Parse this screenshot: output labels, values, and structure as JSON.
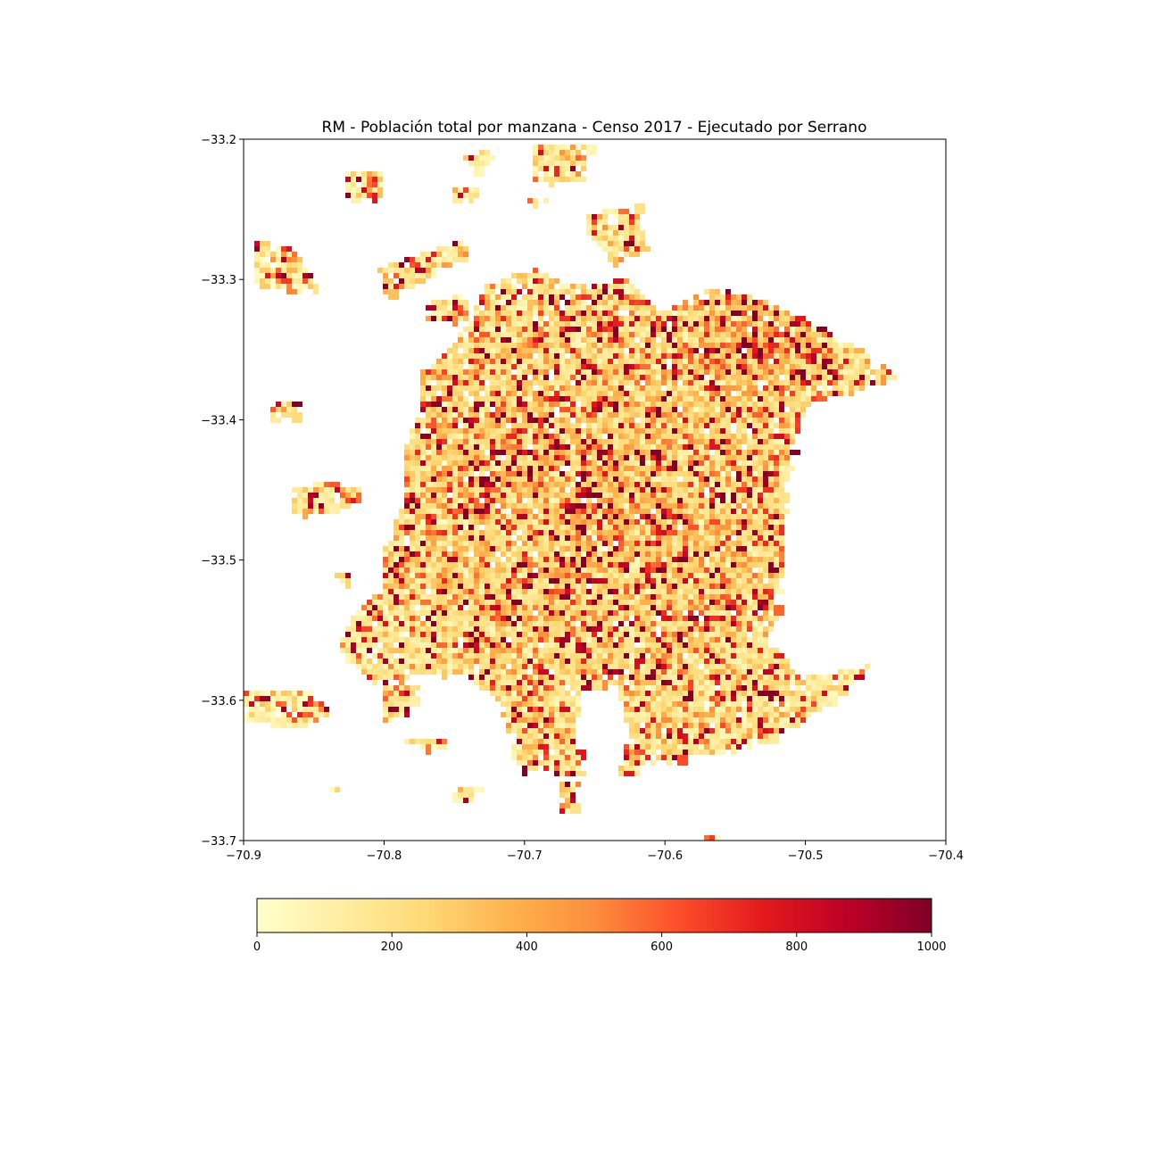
{
  "title": "RM - Población total por manzana - Censo 2017 - Ejecutado por Serrano",
  "map": {
    "xlim": [
      -70.9,
      -70.4
    ],
    "ylim": [
      -33.7,
      -33.2
    ],
    "xticks": [
      -70.9,
      -70.8,
      -70.7,
      -70.6,
      -70.5,
      -70.4
    ],
    "yticks": [
      -33.2,
      -33.3,
      -33.4,
      -33.5,
      -33.6,
      -33.7
    ],
    "xtick_labels": [
      "−70.9",
      "−70.8",
      "−70.7",
      "−70.6",
      "−70.5",
      "−70.4"
    ],
    "ytick_labels": [
      "−33.2",
      "−33.3",
      "−33.4",
      "−33.5",
      "−33.6",
      "−33.7"
    ],
    "colormap": "YlOrRd",
    "grid": false
  },
  "colorbar": {
    "orientation": "horizontal",
    "placement": "bottom",
    "range": [
      0,
      1000
    ],
    "ticks": [
      0,
      200,
      400,
      600,
      800,
      1000
    ],
    "tick_labels": [
      "0",
      "200",
      "400",
      "600",
      "800",
      "1000"
    ],
    "colors": [
      "#ffffcc",
      "#ffeda0",
      "#fed976",
      "#feb24c",
      "#fd8d3c",
      "#fc4e2a",
      "#e31a1c",
      "#bd0026",
      "#800026"
    ]
  },
  "outline_color": "#000000",
  "background_color": "#ffffff"
}
